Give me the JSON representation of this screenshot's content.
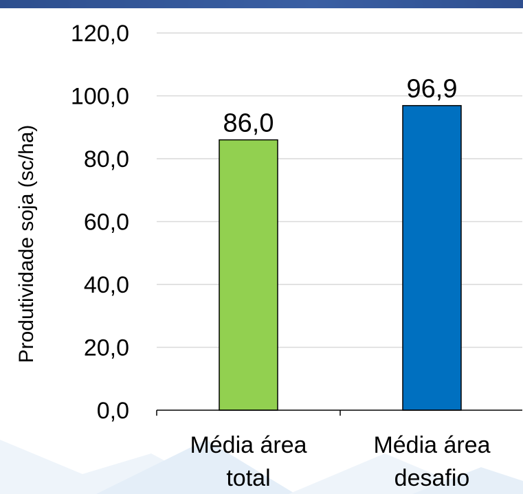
{
  "chart_data": {
    "type": "bar",
    "categories": [
      [
        "Média área",
        "total"
      ],
      [
        "Média área",
        "desafio"
      ]
    ],
    "values": [
      86.0,
      96.9
    ],
    "value_labels": [
      "86,0",
      "96,9"
    ],
    "bar_colors": [
      "#92d050",
      "#0070c0"
    ],
    "title": "",
    "xlabel": "",
    "ylabel": "Produtividade soja (sc/ha)",
    "ylim": [
      0,
      120
    ],
    "yticks": [
      0,
      20,
      40,
      60,
      80,
      100,
      120
    ],
    "ytick_labels": [
      "0,0",
      "20,0",
      "40,0",
      "60,0",
      "80,0",
      "100,0",
      "120,0"
    ],
    "grid": true,
    "legend": false
  },
  "colors": {
    "header_bar": "#2e4f8e",
    "gridline": "#d9d9d9",
    "axis": "#000000",
    "bar_outline": "#000000"
  }
}
